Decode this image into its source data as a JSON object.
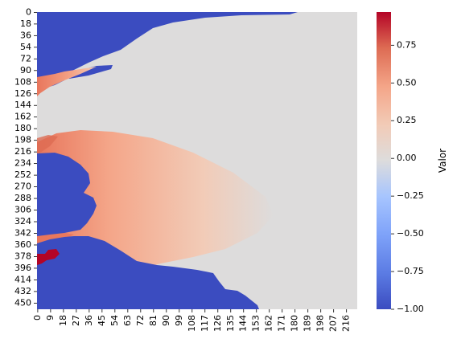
{
  "chart_data": {
    "type": "heatmap",
    "title": "",
    "xlabel": "",
    "ylabel": "",
    "colormap": "coolwarm",
    "vmin": -1.0,
    "vmax": 0.97,
    "x_range": [
      0,
      224
    ],
    "y_range": [
      0,
      460
    ],
    "x_tick_labels": [
      "0",
      "9",
      "18",
      "27",
      "36",
      "45",
      "54",
      "63",
      "72",
      "81",
      "90",
      "99",
      "108",
      "117",
      "126",
      "135",
      "144",
      "153",
      "162",
      "171",
      "180",
      "189",
      "198",
      "207",
      "216"
    ],
    "y_tick_labels": [
      "0",
      "18",
      "36",
      "54",
      "72",
      "90",
      "108",
      "126",
      "144",
      "162",
      "180",
      "198",
      "216",
      "234",
      "252",
      "270",
      "288",
      "306",
      "324",
      "342",
      "360",
      "378",
      "396",
      "414",
      "432",
      "450"
    ],
    "colorbar": {
      "label": "Valor",
      "ticks": [
        "0.75",
        "0.50",
        "0.25",
        "0.00",
        "−0.25",
        "−0.50",
        "−0.75",
        "−1.00"
      ],
      "tick_values": [
        0.75,
        0.5,
        0.25,
        0.0,
        -0.25,
        -0.5,
        -0.75,
        -1.0
      ]
    },
    "regions": [
      {
        "name": "land (value -1.00)",
        "value": -1.0
      },
      {
        "name": "open water (value ~0.00)",
        "value": 0.0
      },
      {
        "name": "main plume near row 190-355",
        "value_range": [
          0.2,
          0.6
        ]
      },
      {
        "name": "upper plume near row 90-115",
        "value_range": [
          0.3,
          0.6
        ]
      },
      {
        "name": "source near rows 370-390",
        "value": 0.95
      }
    ],
    "colors": {
      "land": "#3b4cc0",
      "neutral": "#dddcdc",
      "low_positive": "#f2cbb7",
      "mid_positive": "#f4a588",
      "high_positive": "#e8765c",
      "max": "#b40426"
    }
  }
}
